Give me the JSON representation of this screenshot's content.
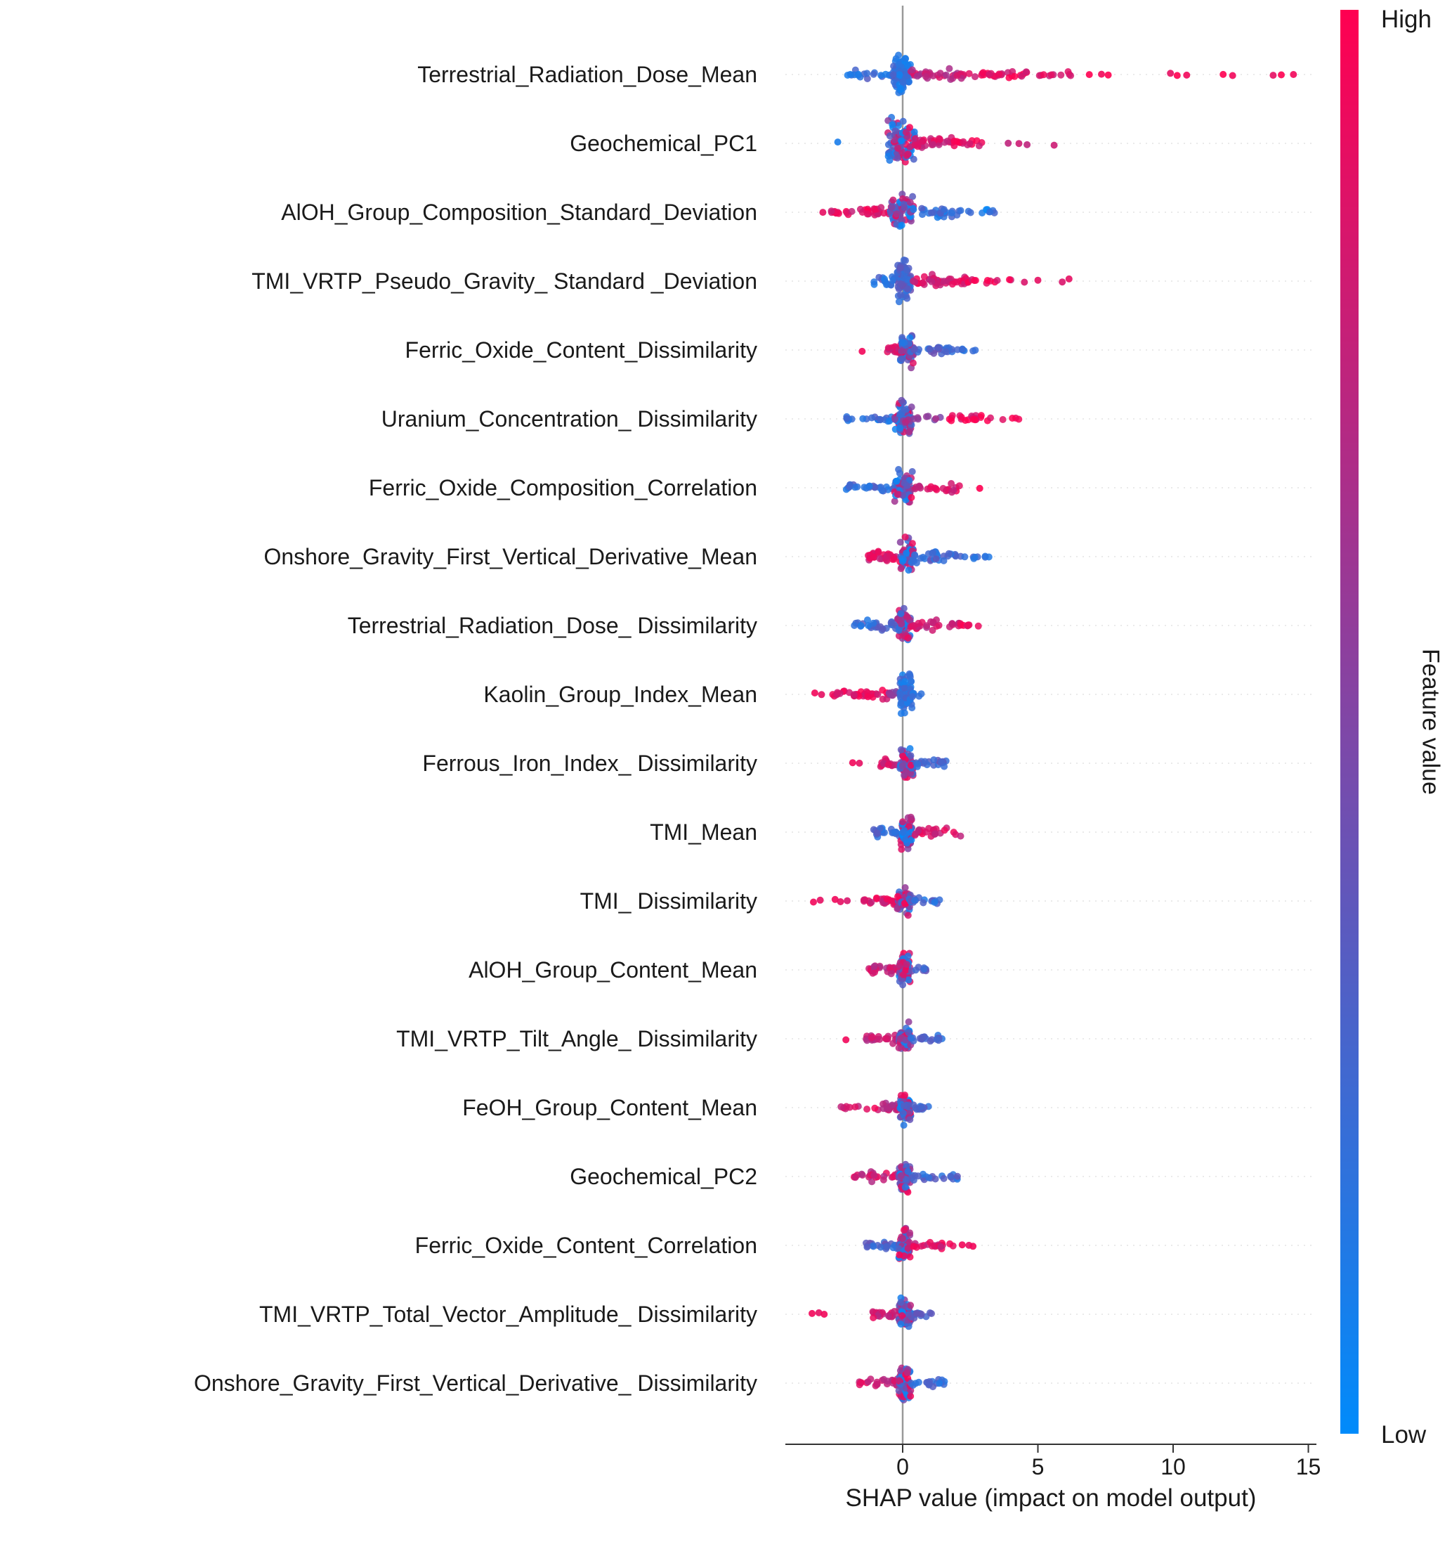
{
  "chart_data": {
    "type": "scatter",
    "variant": "shap_beeswarm_summary",
    "title": "",
    "xlabel": "SHAP value (impact on model output)",
    "xticks": [
      0,
      5,
      10,
      15
    ],
    "xlim": [
      -4.3,
      15.3
    ],
    "grid": "dotted-horizontal-per-row",
    "legend_position": "right-colorbar",
    "colorbar": {
      "label": "Feature value",
      "high_label": "High",
      "low_label": "Low",
      "high_color": "#ff0051",
      "mid_color": "#8046a6",
      "low_color": "#008bfb",
      "zero_line_color": "#999999"
    },
    "features": [
      {
        "name": "Terrestrial_Radiation_Dose_Mean",
        "segments": [
          {
            "x": [
              -0.35,
              0.3
            ],
            "n": 80,
            "v": 0.18,
            "s": 36
          },
          {
            "x": [
              -2.1,
              -0.35
            ],
            "n": 20,
            "v": 0.22,
            "s": 8
          },
          {
            "x": [
              0.3,
              2.3
            ],
            "n": 34,
            "v": 0.75,
            "s": 11
          },
          {
            "x": [
              2.3,
              4.6
            ],
            "n": 26,
            "v": 0.9,
            "s": 8
          },
          {
            "x": [
              4.6,
              6.3
            ],
            "n": 10,
            "v": 0.85,
            "s": 5
          }
        ],
        "outliers": [
          {
            "x": 6.9,
            "v": 1
          },
          {
            "x": 7.35,
            "v": 0.95
          },
          {
            "x": 7.6,
            "v": 1
          },
          {
            "x": 9.9,
            "v": 0.9
          },
          {
            "x": 10.15,
            "v": 1
          },
          {
            "x": 10.5,
            "v": 0.95
          },
          {
            "x": 11.85,
            "v": 1
          },
          {
            "x": 12.2,
            "v": 0.95
          },
          {
            "x": 13.7,
            "v": 0.9
          },
          {
            "x": 14.0,
            "v": 1
          },
          {
            "x": 14.45,
            "v": 0.95
          }
        ]
      },
      {
        "name": "Geochemical_PC1",
        "segments": [
          {
            "x": [
              -0.55,
              0.45
            ],
            "n": 95,
            "v": "mix",
            "s": 40
          },
          {
            "x": [
              0.45,
              1.9
            ],
            "n": 34,
            "v": 0.85,
            "s": 12
          },
          {
            "x": [
              1.9,
              3.1
            ],
            "n": 14,
            "v": 0.9,
            "s": 6
          }
        ],
        "outliers": [
          {
            "x": -2.4,
            "v": 0.1
          },
          {
            "x": 3.9,
            "v": 0.75
          },
          {
            "x": 4.3,
            "v": 0.8
          },
          {
            "x": 4.6,
            "v": 0.75
          },
          {
            "x": 5.6,
            "v": 0.8
          }
        ]
      },
      {
        "name": "AlOH_Group_Composition_Standard_Deviation",
        "segments": [
          {
            "x": [
              -2.7,
              -0.45
            ],
            "n": 32,
            "v": 0.88,
            "s": 9
          },
          {
            "x": [
              -0.45,
              0.4
            ],
            "n": 65,
            "v": "mix",
            "s": 32
          },
          {
            "x": [
              0.4,
              2.2
            ],
            "n": 28,
            "v": 0.2,
            "s": 10
          },
          {
            "x": [
              2.2,
              3.5
            ],
            "n": 9,
            "v": 0.15,
            "s": 5
          }
        ],
        "outliers": [
          {
            "x": -2.95,
            "v": 0.9
          }
        ]
      },
      {
        "name": "TMI_VRTP_Pseudo_Gravity_ Standard _Deviation",
        "segments": [
          {
            "x": [
              -1.15,
              -0.2
            ],
            "n": 18,
            "v": 0.22,
            "s": 10
          },
          {
            "x": [
              -0.2,
              0.3
            ],
            "n": 75,
            "v": 0.3,
            "s": 40
          },
          {
            "x": [
              0.3,
              2.4
            ],
            "n": 40,
            "v": 0.85,
            "s": 11
          },
          {
            "x": [
              2.4,
              4.1
            ],
            "n": 12,
            "v": 0.9,
            "s": 5
          }
        ],
        "outliers": [
          {
            "x": 4.5,
            "v": 0.85
          },
          {
            "x": 5.0,
            "v": 0.9
          },
          {
            "x": 5.9,
            "v": 0.85
          },
          {
            "x": 6.15,
            "v": 0.9
          }
        ]
      },
      {
        "name": "Ferric_Oxide_Content_Dissimilarity",
        "segments": [
          {
            "x": [
              -0.6,
              -0.1
            ],
            "n": 14,
            "v": 0.8,
            "s": 9
          },
          {
            "x": [
              -0.1,
              0.4
            ],
            "n": 60,
            "v": "mix",
            "s": 30
          },
          {
            "x": [
              0.4,
              2.0
            ],
            "n": 24,
            "v": 0.3,
            "s": 9
          },
          {
            "x": [
              2.0,
              3.3
            ],
            "n": 8,
            "v": 0.15,
            "s": 4
          }
        ],
        "outliers": [
          {
            "x": -1.5,
            "v": 0.95
          }
        ]
      },
      {
        "name": "Uranium_Concentration_ Dissimilarity",
        "segments": [
          {
            "x": [
              -2.2,
              -0.3
            ],
            "n": 20,
            "v": 0.2,
            "s": 7
          },
          {
            "x": [
              -0.3,
              0.35
            ],
            "n": 65,
            "v": "mix",
            "s": 33
          },
          {
            "x": [
              0.35,
              1.4
            ],
            "n": 8,
            "v": 0.55,
            "s": 6
          },
          {
            "x": [
              1.4,
              3.1
            ],
            "n": 18,
            "v": 0.9,
            "s": 6
          },
          {
            "x": [
              3.1,
              4.3
            ],
            "n": 6,
            "v": 0.95,
            "s": 4
          }
        ],
        "outliers": []
      },
      {
        "name": "Ferric_Oxide_Composition_Correlation",
        "segments": [
          {
            "x": [
              -2.2,
              -0.3
            ],
            "n": 26,
            "v": 0.25,
            "s": 8
          },
          {
            "x": [
              -0.3,
              0.4
            ],
            "n": 62,
            "v": "mix",
            "s": 34
          },
          {
            "x": [
              0.4,
              2.1
            ],
            "n": 22,
            "v": 0.85,
            "s": 8
          }
        ],
        "outliers": [
          {
            "x": 2.85,
            "v": 1
          }
        ]
      },
      {
        "name": "Onshore_Gravity_First_Vertical_Derivative_Mean",
        "segments": [
          {
            "x": [
              -1.3,
              -0.1
            ],
            "n": 30,
            "v": 0.85,
            "s": 12
          },
          {
            "x": [
              -0.1,
              0.4
            ],
            "n": 58,
            "v": "mix",
            "s": 30
          },
          {
            "x": [
              0.4,
              2.2
            ],
            "n": 28,
            "v": 0.25,
            "s": 10
          },
          {
            "x": [
              2.2,
              3.2
            ],
            "n": 8,
            "v": 0.2,
            "s": 4
          }
        ],
        "outliers": []
      },
      {
        "name": "Terrestrial_Radiation_Dose_ Dissimilarity",
        "segments": [
          {
            "x": [
              -1.9,
              -0.2
            ],
            "n": 28,
            "v": 0.25,
            "s": 9
          },
          {
            "x": [
              -0.2,
              0.3
            ],
            "n": 58,
            "v": "mix",
            "s": 30
          },
          {
            "x": [
              0.3,
              2.1
            ],
            "n": 26,
            "v": 0.8,
            "s": 9
          },
          {
            "x": [
              2.1,
              3.1
            ],
            "n": 8,
            "v": 0.9,
            "s": 4
          }
        ],
        "outliers": []
      },
      {
        "name": "Kaolin_Group_Index_Mean",
        "segments": [
          {
            "x": [
              -2.6,
              -0.5
            ],
            "n": 34,
            "v": 0.9,
            "s": 9
          },
          {
            "x": [
              -0.5,
              -0.1
            ],
            "n": 12,
            "v": 0.6,
            "s": 10
          },
          {
            "x": [
              -0.1,
              0.35
            ],
            "n": 75,
            "v": 0.2,
            "s": 40
          },
          {
            "x": [
              0.35,
              0.7
            ],
            "n": 6,
            "v": 0.2,
            "s": 6
          }
        ],
        "outliers": [
          {
            "x": -3.25,
            "v": 0.95
          },
          {
            "x": -3.0,
            "v": 0.9
          }
        ]
      },
      {
        "name": "Ferrous_Iron_Index_ Dissimilarity",
        "segments": [
          {
            "x": [
              -0.85,
              -0.1
            ],
            "n": 16,
            "v": 0.8,
            "s": 9
          },
          {
            "x": [
              -0.1,
              0.4
            ],
            "n": 58,
            "v": "mix",
            "s": 28
          },
          {
            "x": [
              0.4,
              1.8
            ],
            "n": 20,
            "v": 0.3,
            "s": 8
          }
        ],
        "outliers": [
          {
            "x": -1.85,
            "v": 0.95
          },
          {
            "x": -1.6,
            "v": 0.9
          }
        ]
      },
      {
        "name": "TMI_Mean",
        "segments": [
          {
            "x": [
              -1.1,
              -0.1
            ],
            "n": 22,
            "v": 0.25,
            "s": 10
          },
          {
            "x": [
              -0.1,
              0.35
            ],
            "n": 58,
            "v": "mix",
            "s": 28
          },
          {
            "x": [
              0.35,
              2.2
            ],
            "n": 24,
            "v": 0.85,
            "s": 8
          }
        ],
        "outliers": []
      },
      {
        "name": "TMI_ Dissimilarity",
        "segments": [
          {
            "x": [
              -1.45,
              -0.2
            ],
            "n": 24,
            "v": 0.85,
            "s": 9
          },
          {
            "x": [
              -0.2,
              0.3
            ],
            "n": 58,
            "v": "mix",
            "s": 26
          },
          {
            "x": [
              0.3,
              1.4
            ],
            "n": 16,
            "v": 0.25,
            "s": 7
          }
        ],
        "outliers": [
          {
            "x": -3.3,
            "v": 0.95
          },
          {
            "x": -3.05,
            "v": 0.9
          },
          {
            "x": -2.5,
            "v": 0.95
          },
          {
            "x": -2.3,
            "v": 0.9
          },
          {
            "x": -2.05,
            "v": 0.85
          }
        ]
      },
      {
        "name": "AlOH_Group_Content_Mean",
        "segments": [
          {
            "x": [
              -1.3,
              -0.15
            ],
            "n": 26,
            "v": 0.8,
            "s": 11
          },
          {
            "x": [
              -0.15,
              0.3
            ],
            "n": 62,
            "v": "mix",
            "s": 32
          },
          {
            "x": [
              0.3,
              0.9
            ],
            "n": 10,
            "v": 0.3,
            "s": 7
          }
        ],
        "outliers": []
      },
      {
        "name": "TMI_VRTP_Tilt_Angle_ Dissimilarity",
        "segments": [
          {
            "x": [
              -1.4,
              -0.15
            ],
            "n": 22,
            "v": 0.8,
            "s": 9
          },
          {
            "x": [
              -0.15,
              0.3
            ],
            "n": 58,
            "v": "mix",
            "s": 26
          },
          {
            "x": [
              0.3,
              1.8
            ],
            "n": 18,
            "v": 0.25,
            "s": 7
          }
        ],
        "outliers": [
          {
            "x": -2.1,
            "v": 0.95
          }
        ]
      },
      {
        "name": "FeOH_Group_Content_Mean",
        "segments": [
          {
            "x": [
              -2.3,
              -0.8
            ],
            "n": 10,
            "v": 0.85,
            "s": 5
          },
          {
            "x": [
              -0.8,
              -0.1
            ],
            "n": 18,
            "v": 0.7,
            "s": 9
          },
          {
            "x": [
              -0.1,
              0.3
            ],
            "n": 58,
            "v": "mix",
            "s": 28
          },
          {
            "x": [
              0.3,
              1.0
            ],
            "n": 12,
            "v": 0.3,
            "s": 7
          }
        ],
        "outliers": []
      },
      {
        "name": "Geochemical_PC2",
        "segments": [
          {
            "x": [
              -1.8,
              -0.15
            ],
            "n": 24,
            "v": 0.8,
            "s": 9
          },
          {
            "x": [
              -0.15,
              0.3
            ],
            "n": 58,
            "v": "mix",
            "s": 28
          },
          {
            "x": [
              0.3,
              2.1
            ],
            "n": 22,
            "v": 0.25,
            "s": 8
          }
        ],
        "outliers": []
      },
      {
        "name": "Ferric_Oxide_Content_Correlation",
        "segments": [
          {
            "x": [
              -1.4,
              -0.15
            ],
            "n": 22,
            "v": 0.3,
            "s": 9
          },
          {
            "x": [
              -0.15,
              0.3
            ],
            "n": 62,
            "v": "mix",
            "s": 30
          },
          {
            "x": [
              0.3,
              1.9
            ],
            "n": 22,
            "v": 0.85,
            "s": 8
          }
        ],
        "outliers": [
          {
            "x": 2.2,
            "v": 0.95
          },
          {
            "x": 2.45,
            "v": 0.9
          },
          {
            "x": 2.6,
            "v": 0.95
          }
        ]
      },
      {
        "name": "TMI_VRTP_Total_Vector_Amplitude_ Dissimilarity",
        "segments": [
          {
            "x": [
              -1.2,
              -0.15
            ],
            "n": 20,
            "v": 0.8,
            "s": 9
          },
          {
            "x": [
              -0.15,
              0.3
            ],
            "n": 58,
            "v": "mix",
            "s": 28
          },
          {
            "x": [
              0.3,
              1.1
            ],
            "n": 14,
            "v": 0.3,
            "s": 7
          }
        ],
        "outliers": [
          {
            "x": -3.35,
            "v": 0.95
          },
          {
            "x": -3.1,
            "v": 0.9
          },
          {
            "x": -2.9,
            "v": 0.95
          }
        ]
      },
      {
        "name": "Onshore_Gravity_First_Vertical_Derivative_ Dissimilarity",
        "segments": [
          {
            "x": [
              -1.6,
              -0.15
            ],
            "n": 22,
            "v": 0.8,
            "s": 9
          },
          {
            "x": [
              -0.15,
              0.3
            ],
            "n": 62,
            "v": "mix",
            "s": 34
          },
          {
            "x": [
              0.3,
              1.6
            ],
            "n": 18,
            "v": 0.25,
            "s": 7
          }
        ],
        "outliers": []
      }
    ]
  }
}
